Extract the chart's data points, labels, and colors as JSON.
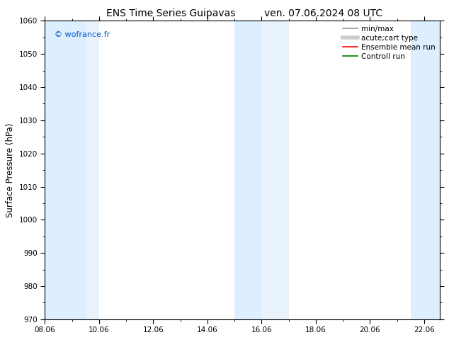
{
  "title_left": "ENS Time Series Guipavas",
  "title_right": "ven. 07.06.2024 08 UTC",
  "ylabel": "Surface Pressure (hPa)",
  "ylim": [
    970,
    1060
  ],
  "yticks": [
    970,
    980,
    990,
    1000,
    1010,
    1020,
    1030,
    1040,
    1050,
    1060
  ],
  "xlim_num": [
    0.0,
    14.583
  ],
  "xtick_labels": [
    "08.06",
    "10.06",
    "12.06",
    "14.06",
    "16.06",
    "18.06",
    "20.06",
    "22.06"
  ],
  "xtick_positions": [
    0,
    2,
    4,
    6,
    8,
    10,
    12,
    14
  ],
  "watermark": "© wofrance.fr",
  "watermark_color": "#0055cc",
  "bg_color": "#ffffff",
  "plot_bg_color": "#ffffff",
  "shaded_bands": [
    {
      "xmin": 0.0,
      "xmax": 0.75,
      "color": "#ddeeff"
    },
    {
      "xmin": 0.75,
      "xmax": 1.5,
      "color": "#ddeeff"
    },
    {
      "xmin": 1.5,
      "xmax": 2.0,
      "color": "#e8f3fb"
    },
    {
      "xmin": 7.0,
      "xmax": 8.0,
      "color": "#ddeeff"
    },
    {
      "xmin": 8.0,
      "xmax": 9.0,
      "color": "#e8f3fb"
    },
    {
      "xmin": 13.5,
      "xmax": 14.583,
      "color": "#ddeeff"
    }
  ],
  "legend_entries": [
    {
      "label": "min/max",
      "color": "#999999",
      "lw": 1.2
    },
    {
      "label": "acute;cart type",
      "color": "#cccccc",
      "lw": 4.0
    },
    {
      "label": "Ensemble mean run",
      "color": "#ff0000",
      "lw": 1.2
    },
    {
      "label": "Controll run",
      "color": "#007700",
      "lw": 1.2
    }
  ],
  "title_fontsize": 10,
  "tick_fontsize": 7.5,
  "ylabel_fontsize": 8.5,
  "legend_fontsize": 7.5
}
